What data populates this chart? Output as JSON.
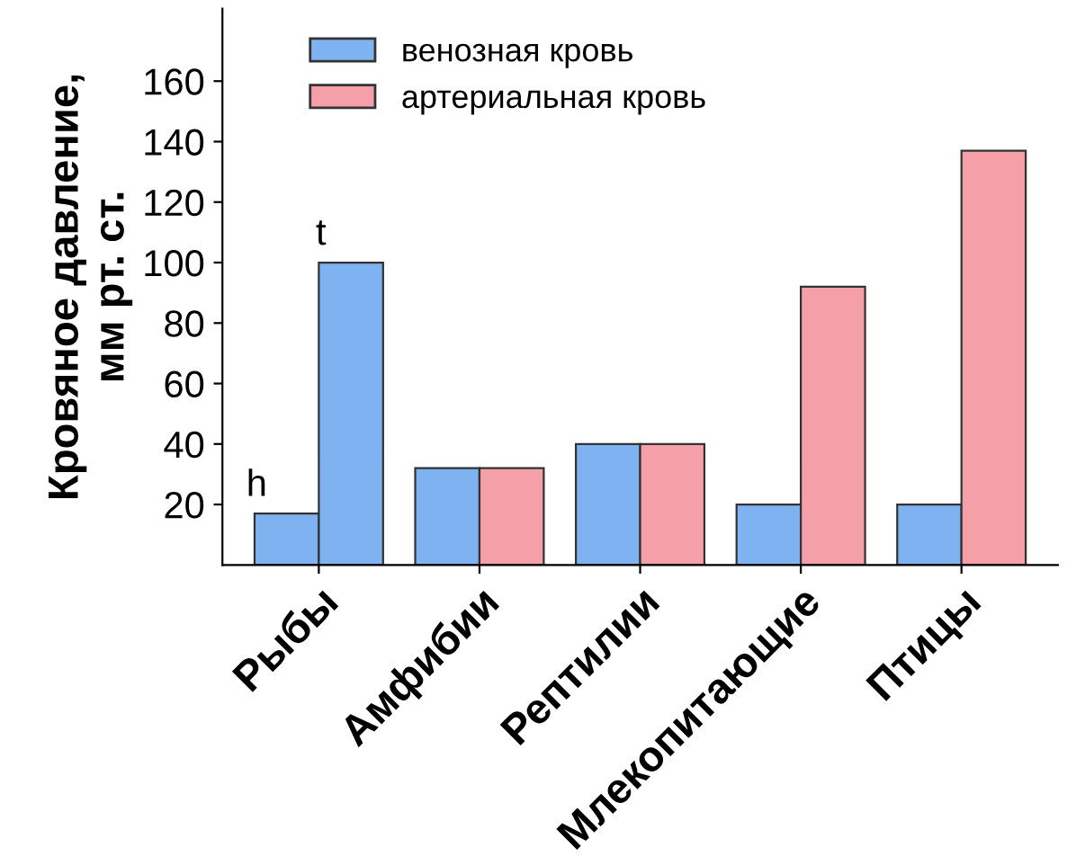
{
  "chart_data": {
    "type": "bar",
    "ylabel": "Кровяное давление,\nмм рт. ст.",
    "categories": [
      "Рыбы",
      "Амфибии",
      "Рептилии",
      "Млекопитающие",
      "Птицы"
    ],
    "series": [
      {
        "name": "венозная кровь",
        "color": "#7fb2f0",
        "values": [
          17,
          32,
          40,
          20,
          20
        ]
      },
      {
        "name": "артериальная кровь",
        "color": "#f5a0a8",
        "colors": [
          "#7fb2f0",
          "#f5a0a8",
          "#f5a0a8",
          "#f5a0a8",
          "#f5a0a8"
        ],
        "values": [
          100,
          32,
          40,
          92,
          137
        ]
      }
    ],
    "annotations": [
      {
        "text": "h",
        "x": "Рыбы",
        "y": 17
      },
      {
        "text": "t",
        "x": "Рыбы",
        "y": 100
      }
    ],
    "ylim": [
      0,
      184
    ],
    "yticks": [
      20,
      40,
      60,
      80,
      100,
      120,
      140,
      160
    ],
    "grid": false,
    "legend": "top left"
  }
}
